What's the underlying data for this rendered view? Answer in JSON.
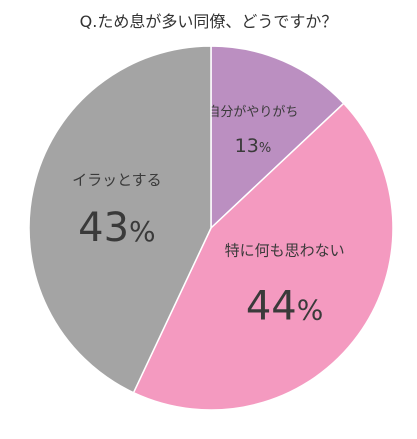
{
  "chart_data": {
    "type": "pie",
    "title": "Q.ため息が多い同僚、どうですか？",
    "start": "top",
    "direction": "clockwise",
    "slices": [
      {
        "label": "自分がやりがち",
        "value": 13,
        "display": "13",
        "unit": "%",
        "color": "#bb8fc1"
      },
      {
        "label": "特に何も思わない",
        "value": 44,
        "display": "44",
        "unit": "%",
        "color": "#f49ac0"
      },
      {
        "label": "イラッとする",
        "value": 43,
        "display": "43",
        "unit": "%",
        "color": "#a4a4a4"
      }
    ],
    "divider_color": "#ffffff"
  }
}
